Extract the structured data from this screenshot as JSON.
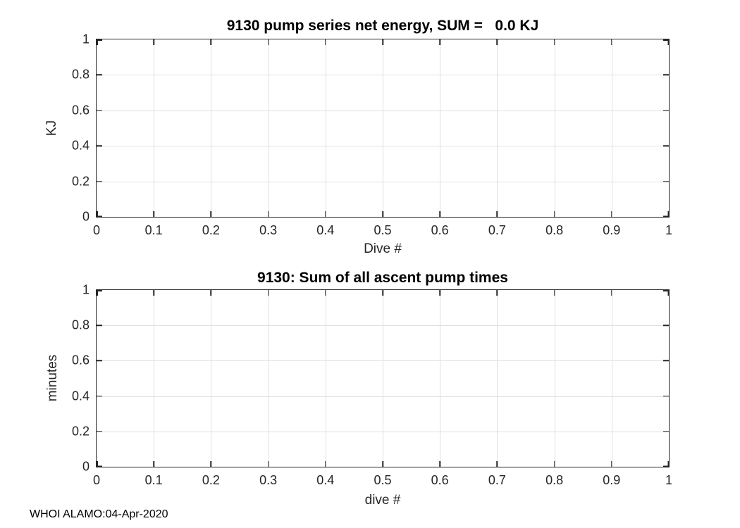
{
  "figure": {
    "background": "#ffffff",
    "footer": "WHOI ALAMO:04-Apr-2020"
  },
  "style": {
    "axis_color": "#262626",
    "grid_color": "#e0e0e0",
    "title_color": "#000000"
  },
  "chart_data": [
    {
      "type": "line",
      "title": "9130 pump series net energy, SUM =   0.0 KJ",
      "xlabel": "Dive #",
      "ylabel": "KJ",
      "xlim": [
        0,
        1
      ],
      "ylim": [
        0,
        1
      ],
      "x_ticks": [
        0,
        0.1,
        0.2,
        0.3,
        0.4,
        0.5,
        0.6,
        0.7,
        0.8,
        0.9,
        1
      ],
      "x_tick_labels": [
        "0",
        "0.1",
        "0.2",
        "0.3",
        "0.4",
        "0.5",
        "0.6",
        "0.7",
        "0.8",
        "0.9",
        "1"
      ],
      "y_ticks": [
        0,
        0.2,
        0.4,
        0.6,
        0.8,
        1
      ],
      "y_tick_labels": [
        "0",
        "0.2",
        "0.4",
        "0.6",
        "0.8",
        "1"
      ],
      "grid": true,
      "box": true,
      "legend": null,
      "series": []
    },
    {
      "type": "line",
      "title": "9130: Sum of all ascent pump times",
      "xlabel": "dive #",
      "ylabel": "minutes",
      "xlim": [
        0,
        1
      ],
      "ylim": [
        0,
        1
      ],
      "x_ticks": [
        0,
        0.1,
        0.2,
        0.3,
        0.4,
        0.5,
        0.6,
        0.7,
        0.8,
        0.9,
        1
      ],
      "x_tick_labels": [
        "0",
        "0.1",
        "0.2",
        "0.3",
        "0.4",
        "0.5",
        "0.6",
        "0.7",
        "0.8",
        "0.9",
        "1"
      ],
      "y_ticks": [
        0,
        0.2,
        0.4,
        0.6,
        0.8,
        1
      ],
      "y_tick_labels": [
        "0",
        "0.2",
        "0.4",
        "0.6",
        "0.8",
        "1"
      ],
      "grid": true,
      "box": true,
      "legend": null,
      "series": []
    }
  ]
}
